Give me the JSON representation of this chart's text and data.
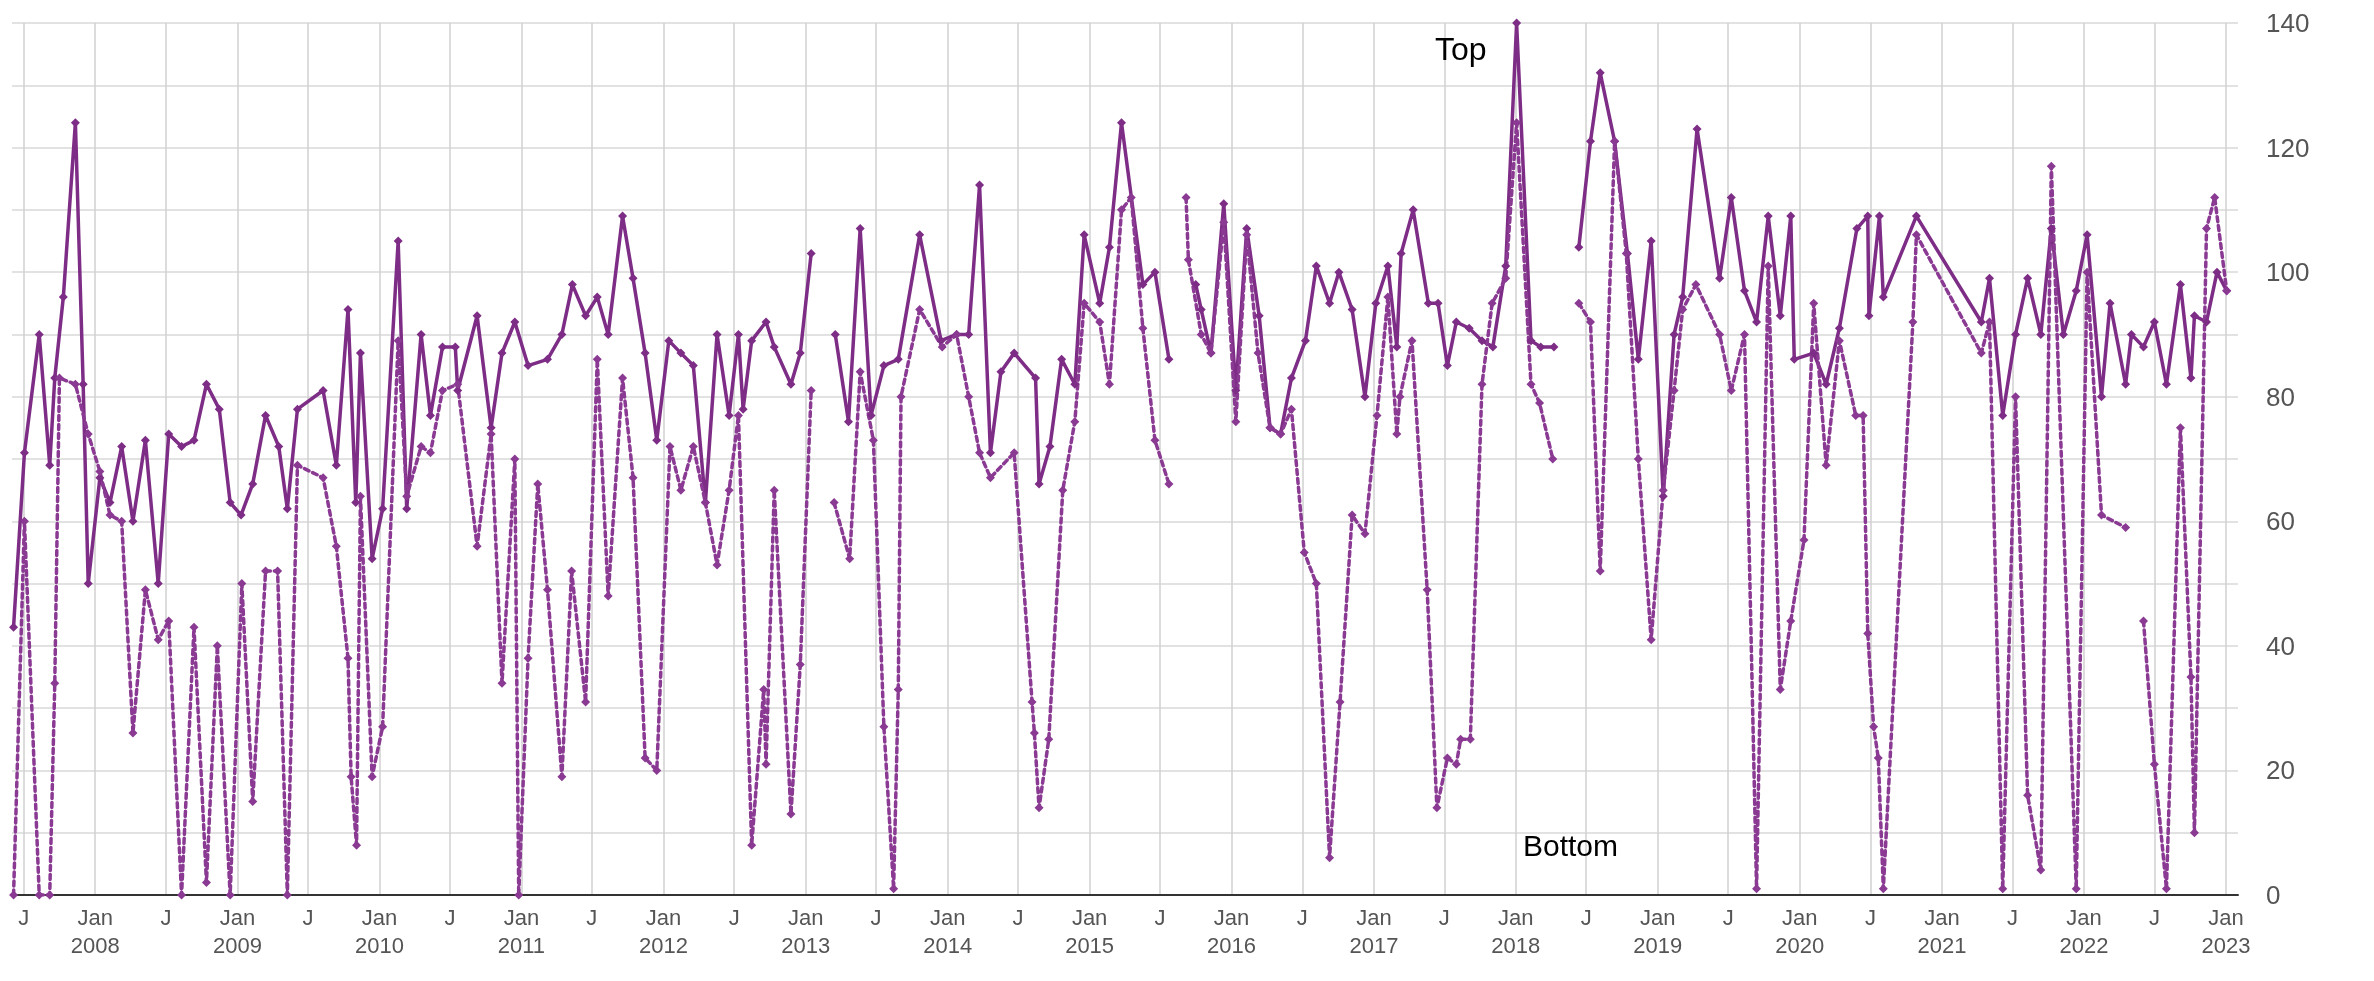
{
  "chart_data": {
    "type": "line",
    "marker": "diamond",
    "grid": true,
    "legend": false,
    "annotations": [
      {
        "text": "Top",
        "x": "2018-01-03",
        "y": 140
      },
      "Bottom"
    ],
    "xlim": [
      "2007-06-01",
      "2023-02-01"
    ],
    "xticks": [
      {
        "value": "2007-07",
        "label": "J"
      },
      {
        "value": "2008-01",
        "label": "Jan\n2008"
      },
      {
        "value": "2008-07",
        "label": "J"
      },
      {
        "value": "2009-01",
        "label": "Jan\n2009"
      },
      {
        "value": "2009-07",
        "label": "J"
      },
      {
        "value": "2010-01",
        "label": "Jan\n2010"
      },
      {
        "value": "2010-07",
        "label": "J"
      },
      {
        "value": "2011-01",
        "label": "Jan\n2011"
      },
      {
        "value": "2011-07",
        "label": "J"
      },
      {
        "value": "2012-01",
        "label": "Jan\n2012"
      },
      {
        "value": "2012-07",
        "label": "J"
      },
      {
        "value": "2013-01",
        "label": "Jan\n2013"
      },
      {
        "value": "2013-07",
        "label": "J"
      },
      {
        "value": "2014-01",
        "label": "Jan\n2014"
      },
      {
        "value": "2014-07",
        "label": "J"
      },
      {
        "value": "2015-01",
        "label": "Jan\n2015"
      },
      {
        "value": "2015-07",
        "label": "J"
      },
      {
        "value": "2016-01",
        "label": "Jan\n2016"
      },
      {
        "value": "2016-07",
        "label": "J"
      },
      {
        "value": "2017-01",
        "label": "Jan\n2017"
      },
      {
        "value": "2017-07",
        "label": "J"
      },
      {
        "value": "2018-01",
        "label": "Jan\n2018"
      },
      {
        "value": "2018-07",
        "label": "J"
      },
      {
        "value": "2019-01",
        "label": "Jan\n2019"
      },
      {
        "value": "2019-07",
        "label": "J"
      },
      {
        "value": "2020-01",
        "label": "Jan\n2020"
      },
      {
        "value": "2020-07",
        "label": "J"
      },
      {
        "value": "2021-01",
        "label": "Jan\n2021"
      },
      {
        "value": "2021-07",
        "label": "J"
      },
      {
        "value": "2022-01",
        "label": "Jan\n2022"
      },
      {
        "value": "2022-07",
        "label": "J"
      },
      {
        "value": "2023-01",
        "label": "Jan\n2023"
      }
    ],
    "ylim": [
      0,
      140
    ],
    "yticks": [
      0,
      {
        "value": 10,
        "label": null
      },
      20,
      {
        "value": 30,
        "label": null
      },
      40,
      {
        "value": 50,
        "label": null
      },
      60,
      {
        "value": 70,
        "label": null
      },
      80,
      {
        "value": 90,
        "label": null
      },
      100,
      {
        "value": 110,
        "label": null
      },
      120,
      {
        "value": 130,
        "label": null
      },
      140
    ],
    "series": [
      {
        "color": "#7e2d86",
        "line_style": "solid",
        "x": [
          "2007-06-05",
          "2007-07-03",
          "2007-08-10",
          "2007-09-06",
          "2007-09-19",
          "2007-10-11",
          "2007-11-11",
          "2007-12-01",
          "2007-12-14",
          "2008-01-13",
          "2008-02-08",
          "2008-03-09",
          "2008-04-07",
          "2008-05-09",
          "2008-06-11",
          "2008-07-08",
          "2008-08-10",
          "2008-09-11",
          "2008-10-13",
          "2008-11-15",
          "2008-12-13",
          "2009-01-10",
          "2009-02-09",
          "2009-03-14",
          "2009-04-17",
          "2009-05-09",
          "2009-06-04",
          "2009-08-09",
          "2009-09-12",
          "2009-10-12",
          "2009-11-01",
          "2009-11-13",
          "2009-12-13",
          "2010-01-09",
          "2010-02-18",
          "2010-03-12",
          "2010-04-18",
          "2010-05-12",
          "2010-06-12",
          "2010-07-15",
          "2010-07-21",
          "2010-09-09",
          "2010-10-15",
          "2010-11-12",
          "2010-12-15",
          "2011-01-18",
          "2011-03-09",
          "2011-04-15",
          "2011-05-12",
          "2011-06-15",
          "2011-07-15",
          "2011-08-12",
          "2011-09-18",
          "2011-10-15",
          "2011-11-15",
          "2011-12-15",
          "2012-01-15",
          "2012-02-15",
          "2012-03-18",
          "2012-04-18",
          "2012-05-18",
          "2012-06-18",
          "2012-07-12",
          "2012-07-24",
          "2012-08-15",
          "2012-09-21",
          "2012-10-12",
          "2012-11-24",
          "2012-12-18",
          "2013-01-15",
          "2013-02-15",
          "2013-03-18",
          "2013-04-21",
          "2013-05-21",
          "2013-06-18",
          "2013-07-21",
          "2013-08-27",
          "2013-10-21",
          "2013-12-15",
          "2014-01-24",
          "2014-02-24",
          "2014-03-24",
          "2014-04-21",
          "2014-05-18",
          "2014-06-21",
          "2014-08-15",
          "2014-08-24",
          "2014-09-21",
          "2014-10-21",
          "2014-11-24",
          "2014-12-18",
          "2015-01-27",
          "2015-02-21",
          "2015-03-24",
          "2015-05-18",
          "2015-06-18",
          "2015-07-24",
          "2015-08-20",
          "2015-10-01",
          "2015-10-15",
          "2015-11-09",
          "2015-12-12",
          "2016-01-12",
          "2016-02-09",
          "2016-03-12",
          "2016-04-09",
          "2016-05-06",
          "2016-06-03",
          "2016-07-09",
          "2016-08-06",
          "2016-09-09",
          "2016-10-03",
          "2016-11-06",
          "2016-12-09",
          "2017-01-06",
          "2017-02-06",
          "2017-03-01",
          "2017-03-12",
          "2017-04-12",
          "2017-05-21",
          "2017-06-15",
          "2017-07-09",
          "2017-08-01",
          "2017-09-03",
          "2017-10-06",
          "2017-11-03",
          "2017-12-06",
          "2018-01-03",
          "2018-02-09",
          "2018-03-06",
          "2018-04-09",
          "2018-05-10",
          "2018-06-12",
          "2018-07-12",
          "2018-08-06",
          "2018-09-12",
          "2018-10-15",
          "2018-11-12",
          "2018-12-15",
          "2019-01-15",
          "2019-02-12",
          "2019-03-06",
          "2019-04-12",
          "2019-06-09",
          "2019-07-09",
          "2019-08-12",
          "2019-09-12",
          "2019-10-12",
          "2019-11-12",
          "2019-12-09",
          "2019-12-18",
          "2020-02-06",
          "2020-03-09",
          "2020-04-12",
          "2020-05-27",
          "2020-06-24",
          "2020-06-27",
          "2020-07-24",
          "2020-08-03",
          "2020-10-27",
          "2021-04-12",
          "2021-05-03",
          "2021-06-06",
          "2021-07-09",
          "2021-08-09",
          "2021-09-12",
          "2021-10-09",
          "2021-11-09",
          "2021-12-12",
          "2022-01-09",
          "2022-02-15",
          "2022-03-09",
          "2022-04-18",
          "2022-05-03",
          "2022-06-03",
          "2022-07-01",
          "2022-08-01",
          "2022-09-06",
          "2022-10-03",
          "2022-10-12",
          "2022-11-12",
          "2022-12-09",
          "2023-01-03"
        ],
        "values": [
          43,
          71,
          90,
          69,
          83,
          96,
          124,
          82,
          50,
          67,
          63,
          72,
          60,
          73,
          50,
          74,
          72,
          73,
          82,
          78,
          63,
          61,
          66,
          77,
          72,
          62,
          78,
          81,
          69,
          94,
          63,
          87,
          54,
          62,
          105,
          62,
          90,
          77,
          88,
          88,
          81,
          93,
          75,
          87,
          92,
          85,
          86,
          90,
          98,
          93,
          96,
          90,
          109,
          99,
          87,
          73,
          89,
          87,
          85,
          63,
          90,
          77,
          90,
          78,
          89,
          92,
          88,
          82,
          87,
          103,
          null,
          90,
          76,
          107,
          77,
          85,
          86,
          106,
          89,
          90,
          90,
          114,
          71,
          84,
          87,
          83,
          66,
          72,
          86,
          82,
          106,
          95,
          104,
          124,
          98,
          100,
          86,
          null,
          98,
          94,
          87,
          111,
          81,
          107,
          93,
          75,
          74,
          83,
          89,
          101,
          95,
          100,
          94,
          80,
          95,
          101,
          88,
          103,
          110,
          95,
          95,
          85,
          92,
          91,
          89,
          88,
          101,
          140,
          89,
          88,
          88,
          null,
          104,
          121,
          132,
          121,
          103,
          86,
          105,
          64,
          90,
          96,
          123,
          99,
          112,
          97,
          92,
          109,
          93,
          109,
          86,
          87,
          82,
          91,
          107,
          109,
          93,
          109,
          96,
          109,
          92,
          99,
          77,
          90,
          99,
          90,
          107,
          90,
          97,
          106,
          80,
          95,
          82,
          90,
          88,
          92,
          82,
          98,
          83,
          93,
          92,
          100,
          97
        ]
      },
      {
        "color": "#8a3a92",
        "line_style": "dotted",
        "x": [
          "2007-06-05",
          "2007-07-03",
          "2007-08-10",
          "2007-09-06",
          "2007-09-19",
          "2007-10-01",
          "2007-11-11",
          "2007-12-14",
          "2008-01-13",
          "2008-02-08",
          "2008-03-09",
          "2008-04-07",
          "2008-05-09",
          "2008-06-11",
          "2008-07-08",
          "2008-08-10",
          "2008-09-11",
          "2008-10-13",
          "2008-11-10",
          "2008-12-13",
          "2009-01-12",
          "2009-02-09",
          "2009-03-14",
          "2009-04-14",
          "2009-05-09",
          "2009-06-04",
          "2009-08-09",
          "2009-09-12",
          "2009-10-12",
          "2009-10-20",
          "2009-11-03",
          "2009-11-13",
          "2009-12-13",
          "2010-01-09",
          "2010-02-18",
          "2010-03-12",
          "2010-04-18",
          "2010-05-12",
          "2010-06-12",
          "2010-07-21",
          "2010-09-09",
          "2010-10-15",
          "2010-11-12",
          "2010-12-15",
          "2010-12-25",
          "2011-01-18",
          "2011-02-12",
          "2011-03-09",
          "2011-04-15",
          "2011-05-10",
          "2011-06-15",
          "2011-07-15",
          "2011-08-12",
          "2011-09-18",
          "2011-10-15",
          "2011-11-15",
          "2011-12-15",
          "2012-01-18",
          "2012-02-15",
          "2012-03-18",
          "2012-04-18",
          "2012-05-18",
          "2012-06-18",
          "2012-07-12",
          "2012-08-15",
          "2012-09-15",
          "2012-09-21",
          "2012-10-12",
          "2012-11-24",
          "2012-12-18",
          "2013-01-15",
          "2013-02-15",
          "2013-03-15",
          "2013-04-24",
          "2013-05-21",
          "2013-06-24",
          "2013-07-21",
          "2013-08-15",
          "2013-08-27",
          "2013-09-03",
          "2013-10-21",
          "2013-12-18",
          "2014-01-24",
          "2014-02-24",
          "2014-03-24",
          "2014-04-21",
          "2014-06-21",
          "2014-08-06",
          "2014-08-12",
          "2014-08-24",
          "2014-09-18",
          "2014-10-24",
          "2014-11-24",
          "2014-12-18",
          "2015-01-27",
          "2015-02-21",
          "2015-03-24",
          "2015-04-18",
          "2015-05-18",
          "2015-06-18",
          "2015-07-24",
          "2015-08-15",
          "2015-09-06",
          "2015-09-12",
          "2015-10-15",
          "2015-11-09",
          "2015-12-12",
          "2016-01-12",
          "2016-02-09",
          "2016-03-09",
          "2016-04-09",
          "2016-05-06",
          "2016-06-03",
          "2016-07-06",
          "2016-08-06",
          "2016-09-09",
          "2016-10-06",
          "2016-11-06",
          "2016-12-09",
          "2017-01-09",
          "2017-02-06",
          "2017-03-01",
          "2017-03-09",
          "2017-04-09",
          "2017-05-18",
          "2017-06-12",
          "2017-07-09",
          "2017-08-01",
          "2017-08-12",
          "2017-09-06",
          "2017-10-06",
          "2017-11-01",
          "2017-12-06",
          "2018-01-03",
          "2018-02-09",
          "2018-03-03",
          "2018-04-06",
          "2018-05-10",
          "2018-06-12",
          "2018-07-12",
          "2018-08-06",
          "2018-09-12",
          "2018-10-12",
          "2018-11-12",
          "2018-12-15",
          "2019-01-15",
          "2019-02-12",
          "2019-03-06",
          "2019-04-09",
          "2019-06-09",
          "2019-07-09",
          "2019-08-12",
          "2019-09-12",
          "2019-10-12",
          "2019-11-12",
          "2019-12-09",
          "2020-01-12",
          "2020-02-06",
          "2020-03-09",
          "2020-04-12",
          "2020-05-24",
          "2020-06-12",
          "2020-06-24",
          "2020-07-09",
          "2020-07-21",
          "2020-08-03",
          "2020-10-18",
          "2020-10-27",
          "2021-04-12",
          "2021-05-03",
          "2021-06-06",
          "2021-07-09",
          "2021-08-09",
          "2021-09-12",
          "2021-10-09",
          "2021-12-12",
          "2022-01-09",
          "2022-02-15",
          "2022-04-18",
          "2022-05-10",
          "2022-06-03",
          "2022-07-01",
          "2022-08-01",
          "2022-09-06",
          "2022-10-03",
          "2022-10-12",
          "2022-11-12",
          "2022-12-03",
          "2023-01-03"
        ],
        "values": [
          0,
          60,
          0,
          0,
          34,
          83,
          82,
          74,
          68,
          61,
          60,
          26,
          49,
          41,
          44,
          0,
          43,
          2,
          40,
          0,
          50,
          15,
          52,
          52,
          0,
          69,
          67,
          56,
          38,
          19,
          8,
          64,
          19,
          27,
          89,
          64,
          72,
          71,
          81,
          82,
          56,
          74,
          34,
          70,
          0,
          38,
          66,
          49,
          19,
          52,
          31,
          86,
          48,
          83,
          67,
          22,
          20,
          72,
          65,
          72,
          63,
          53,
          65,
          77,
          8,
          33,
          21,
          65,
          13,
          37,
          81,
          null,
          63,
          54,
          84,
          73,
          27,
          1,
          33,
          80,
          94,
          88,
          90,
          80,
          71,
          67,
          71,
          31,
          26,
          14,
          25,
          65,
          76,
          95,
          92,
          82,
          110,
          112,
          91,
          73,
          66,
          null,
          112,
          102,
          90,
          87,
          108,
          76,
          106,
          87,
          75,
          74,
          78,
          55,
          50,
          6,
          31,
          61,
          58,
          77,
          96,
          74,
          80,
          89,
          49,
          14,
          22,
          21,
          25,
          25,
          82,
          95,
          99,
          124,
          82,
          79,
          70,
          null,
          95,
          92,
          52,
          121,
          103,
          70,
          41,
          65,
          81,
          94,
          98,
          90,
          81,
          90,
          1,
          101,
          33,
          44,
          57,
          95,
          69,
          89,
          77,
          77,
          42,
          27,
          22,
          1,
          92,
          106,
          87,
          92,
          1,
          80,
          16,
          4,
          117,
          1,
          100,
          61,
          59,
          null,
          44,
          21,
          1,
          75,
          35,
          10,
          107,
          112,
          97
        ]
      }
    ]
  }
}
